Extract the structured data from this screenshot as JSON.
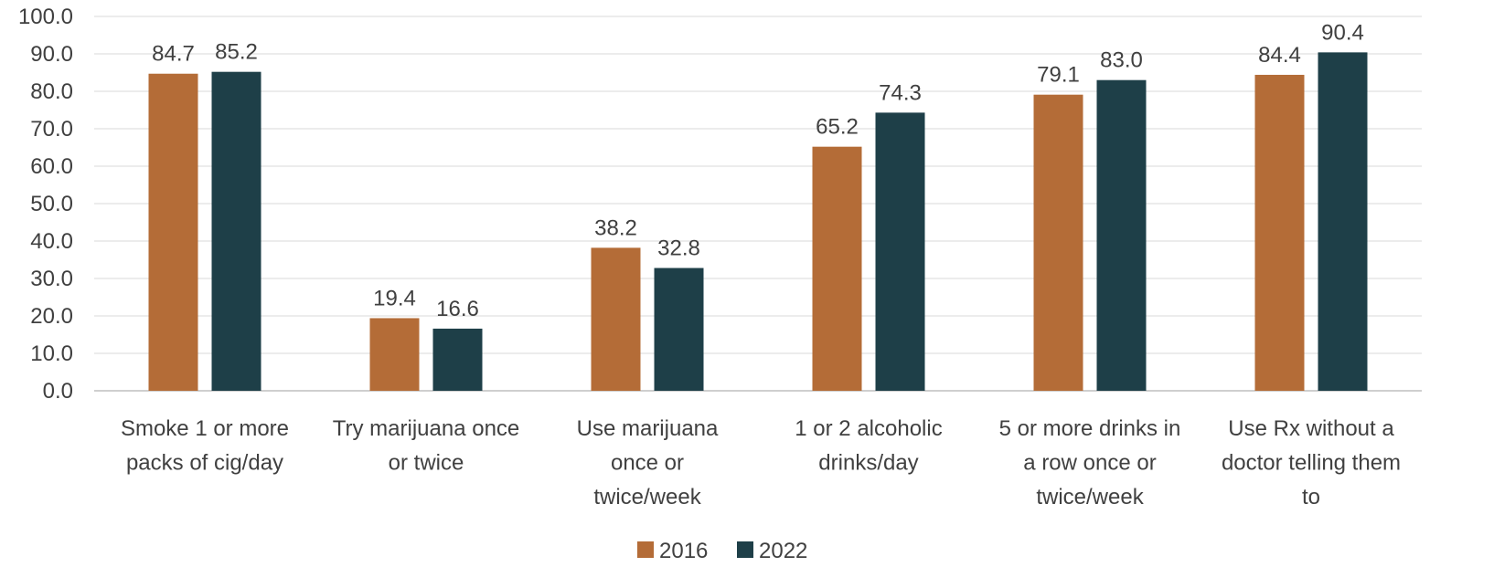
{
  "chart_data": {
    "type": "bar",
    "categories": [
      [
        "Smoke 1 or more",
        "packs of cig/day"
      ],
      [
        "Try marijuana once",
        "or twice"
      ],
      [
        "Use marijuana",
        "once or",
        "twice/week"
      ],
      [
        "1 or 2 alcoholic",
        "drinks/day"
      ],
      [
        "5 or more drinks in",
        "a row once or",
        "twice/week"
      ],
      [
        "Use Rx without a",
        "doctor telling them",
        "to"
      ]
    ],
    "series": [
      {
        "name": "2016",
        "color": "#B46C37",
        "values": [
          84.7,
          19.4,
          38.2,
          65.2,
          79.1,
          84.4
        ]
      },
      {
        "name": "2022",
        "color": "#1E3F48",
        "values": [
          85.2,
          16.6,
          32.8,
          74.3,
          83.0,
          90.4
        ]
      }
    ],
    "ylim": [
      0,
      100
    ],
    "yticks": [
      0,
      10,
      20,
      30,
      40,
      50,
      60,
      70,
      80,
      90,
      100
    ],
    "ytick_labels": [
      "0.0",
      "10.0",
      "20.0",
      "30.0",
      "40.0",
      "50.0",
      "60.0",
      "70.0",
      "80.0",
      "90.0",
      "100.0"
    ],
    "data_labels": [
      [
        "84.7",
        "19.4",
        "38.2",
        "65.2",
        "79.1",
        "84.4"
      ],
      [
        "85.2",
        "16.6",
        "32.8",
        "74.3",
        "83.0",
        "90.4"
      ]
    ],
    "grid": true,
    "legend": "bottom-center",
    "title": "",
    "xlabel": "",
    "ylabel": ""
  }
}
